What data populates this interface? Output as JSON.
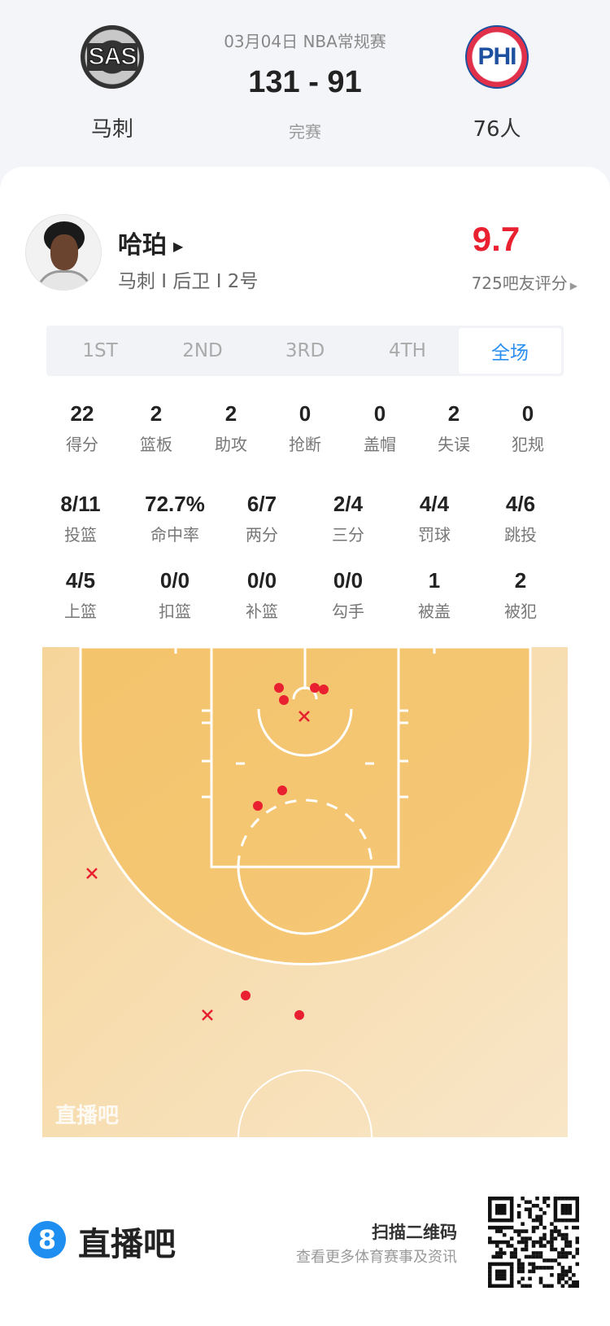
{
  "match": {
    "date_league": "03月04日 NBA常规赛",
    "score": "131 - 91",
    "status": "完赛",
    "home": {
      "name": "马刺",
      "logo_text": "SAS"
    },
    "away": {
      "name": "76人",
      "logo_text": "PHI"
    }
  },
  "player": {
    "name": "哈珀",
    "info": "马刺 I 后卫 I 2号",
    "rating": "9.7",
    "rating_label": "725吧友评分",
    "rating_color": "#e8202f"
  },
  "tabs": [
    {
      "label": "1ST"
    },
    {
      "label": "2ND"
    },
    {
      "label": "3RD"
    },
    {
      "label": "4TH"
    },
    {
      "label": "全场",
      "selected": true
    }
  ],
  "stats_row1": [
    {
      "v": "22",
      "l": "得分"
    },
    {
      "v": "2",
      "l": "篮板"
    },
    {
      "v": "2",
      "l": "助攻"
    },
    {
      "v": "0",
      "l": "抢断"
    },
    {
      "v": "0",
      "l": "盖帽"
    },
    {
      "v": "2",
      "l": "失误"
    },
    {
      "v": "0",
      "l": "犯规"
    }
  ],
  "stats_row2": [
    {
      "v": "8/11",
      "l": "投篮"
    },
    {
      "v": "72.7%",
      "l": "命中率"
    },
    {
      "v": "6/7",
      "l": "两分"
    },
    {
      "v": "2/4",
      "l": "三分"
    },
    {
      "v": "4/4",
      "l": "罚球"
    },
    {
      "v": "4/6",
      "l": "跳投"
    }
  ],
  "stats_row3": [
    {
      "v": "4/5",
      "l": "上篮"
    },
    {
      "v": "0/0",
      "l": "扣篮"
    },
    {
      "v": "0/0",
      "l": "补篮"
    },
    {
      "v": "0/0",
      "l": "勾手"
    },
    {
      "v": "1",
      "l": "被盖"
    },
    {
      "v": "2",
      "l": "被犯"
    }
  ],
  "shot_chart": {
    "watermark": "直播吧",
    "made_color": "#e8202f",
    "shots": [
      "made",
      "made",
      "made",
      "made",
      "made",
      "made",
      "made",
      "made",
      "miss",
      "miss",
      "miss"
    ]
  },
  "footer": {
    "brand": "直播吧",
    "brand_icon": "8",
    "qr_title": "扫描二维码",
    "qr_subtitle": "查看更多体育赛事及资讯",
    "accent": "#1e8ef0"
  }
}
